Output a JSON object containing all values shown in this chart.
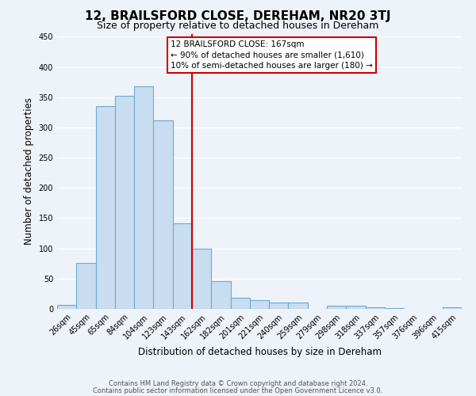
{
  "title": "12, BRAILSFORD CLOSE, DEREHAM, NR20 3TJ",
  "subtitle": "Size of property relative to detached houses in Dereham",
  "xlabel": "Distribution of detached houses by size in Dereham",
  "ylabel": "Number of detached properties",
  "bin_labels": [
    "26sqm",
    "45sqm",
    "65sqm",
    "84sqm",
    "104sqm",
    "123sqm",
    "143sqm",
    "162sqm",
    "182sqm",
    "201sqm",
    "221sqm",
    "240sqm",
    "259sqm",
    "279sqm",
    "298sqm",
    "318sqm",
    "337sqm",
    "357sqm",
    "376sqm",
    "396sqm",
    "415sqm"
  ],
  "bar_values": [
    7,
    76,
    335,
    352,
    368,
    311,
    141,
    100,
    46,
    18,
    15,
    11,
    10,
    0,
    5,
    5,
    2,
    1,
    0,
    0,
    3
  ],
  "bar_color": "#c9ddf0",
  "bar_edge_color": "#6aaad4",
  "vline_color": "#cc0000",
  "annotation_title": "12 BRAILSFORD CLOSE: 167sqm",
  "annotation_line1": "← 90% of detached houses are smaller (1,610)",
  "annotation_line2": "10% of semi-detached houses are larger (180) →",
  "annotation_box_color": "#ffffff",
  "annotation_border_color": "#cc0000",
  "ylim": [
    0,
    455
  ],
  "yticks": [
    0,
    50,
    100,
    150,
    200,
    250,
    300,
    350,
    400,
    450
  ],
  "footer1": "Contains HM Land Registry data © Crown copyright and database right 2024.",
  "footer2": "Contains public sector information licensed under the Open Government Licence v3.0.",
  "background_color": "#eef2f9",
  "grid_color": "#ffffff",
  "title_fontsize": 11,
  "subtitle_fontsize": 9,
  "axis_label_fontsize": 8.5,
  "tick_fontsize": 7,
  "footer_fontsize": 6,
  "annotation_fontsize": 7.5,
  "vline_x_bar_index": 7
}
